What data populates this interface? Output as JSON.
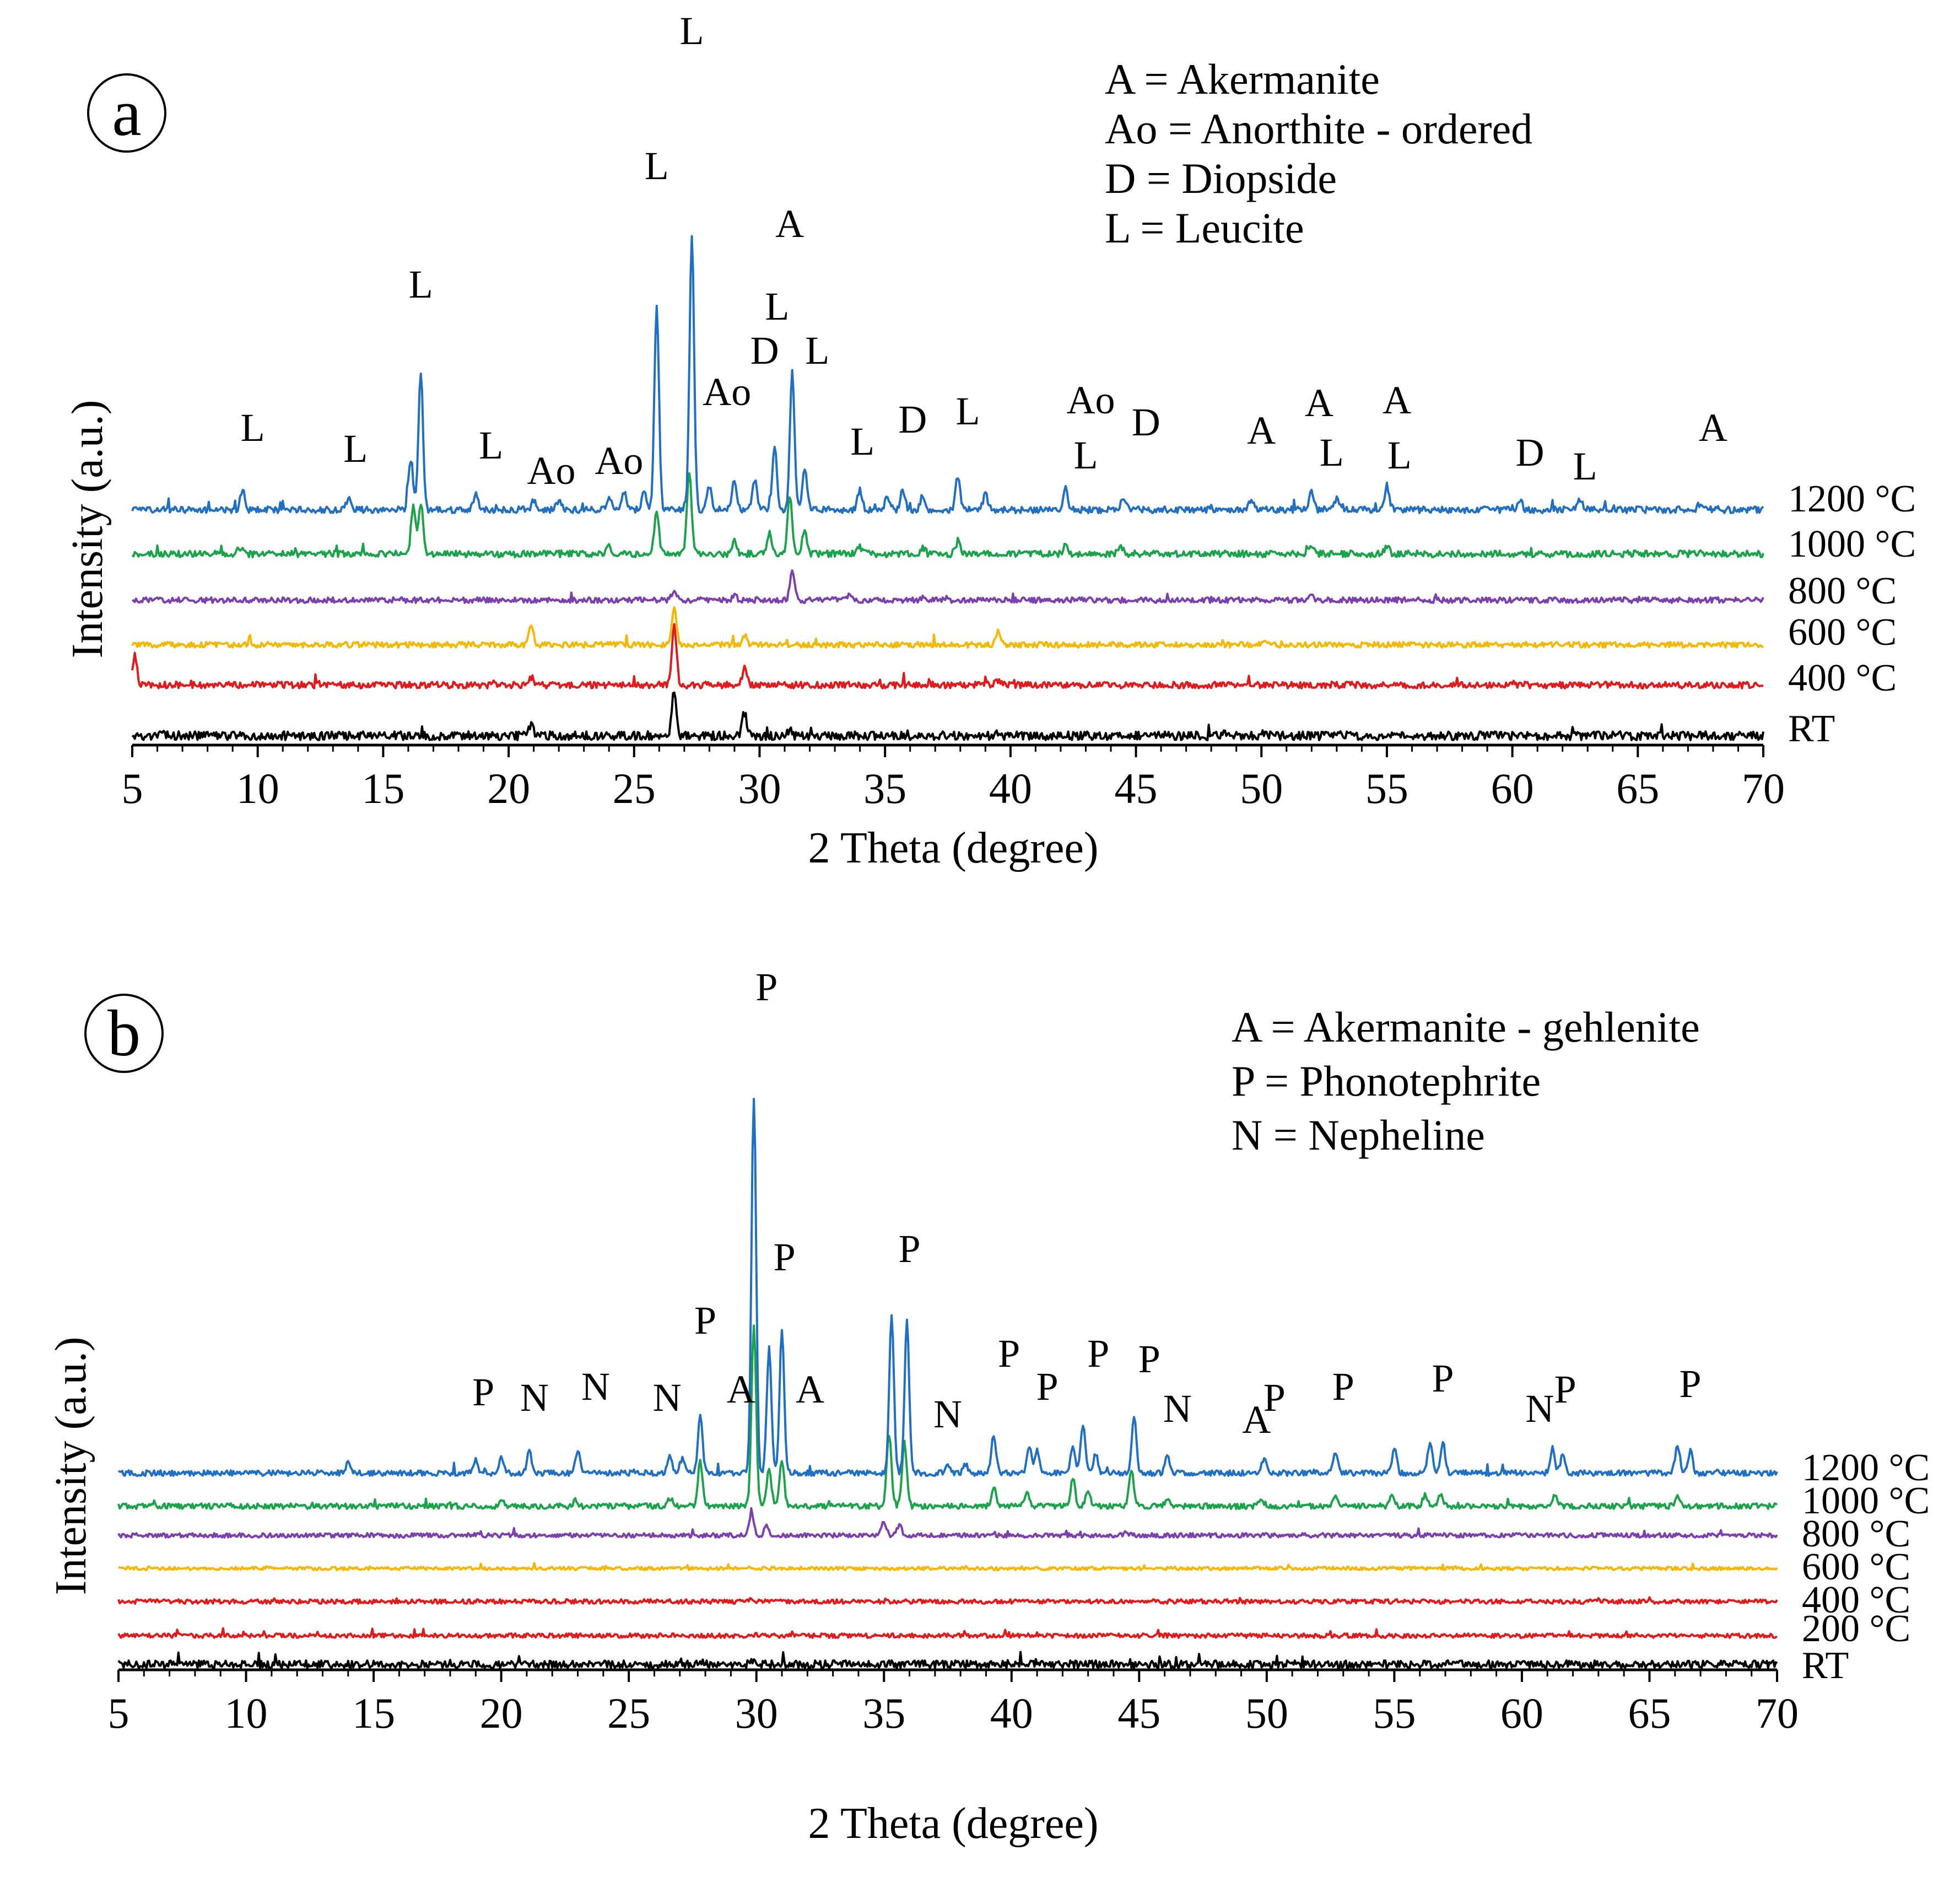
{
  "chart_data": [
    {
      "panel": "a",
      "type": "line",
      "xlabel": "2 Theta (degree)",
      "ylabel": "Intensity (a.u.)",
      "xlim": [
        5,
        70
      ],
      "xticks": [
        5,
        10,
        15,
        20,
        25,
        30,
        35,
        40,
        45,
        50,
        55,
        60,
        65,
        70
      ],
      "legend": [
        "A = Akermanite",
        "Ao = Anorthite - ordered",
        "D = Diopside",
        "L = Leucite"
      ],
      "series": [
        {
          "name": "RT",
          "color": "#000000",
          "peaks": [
            [
              20.9,
              0.6
            ],
            [
              26.6,
              3.0
            ],
            [
              29.4,
              1.5
            ],
            [
              31.2,
              0.35
            ],
            [
              39.5,
              0.25
            ],
            [
              48.5,
              0.2
            ],
            [
              50.1,
              0.25
            ]
          ]
        },
        {
          "name": "400 °C",
          "color": "#e31a1c",
          "peaks": [
            [
              5.1,
              1.5
            ],
            [
              20.9,
              0.4
            ],
            [
              26.6,
              3.0
            ],
            [
              29.4,
              0.9
            ],
            [
              39.5,
              0.25
            ],
            [
              60,
              0.15
            ]
          ]
        },
        {
          "name": "600 °C",
          "color": "#f5b800",
          "peaks": [
            [
              20.9,
              1.2
            ],
            [
              26.6,
              2.2
            ],
            [
              29.4,
              0.6
            ],
            [
              39.5,
              0.85
            ],
            [
              50.2,
              0.15
            ]
          ]
        },
        {
          "name": "800 °C",
          "color": "#7b3fb0",
          "peaks": [
            [
              26.6,
              0.7
            ],
            [
              29.0,
              0.3
            ],
            [
              31.3,
              1.9
            ],
            [
              33.6,
              0.3
            ],
            [
              36.5,
              0.2
            ],
            [
              52.0,
              0.3
            ]
          ]
        },
        {
          "name": "1000 °C",
          "color": "#1aa34a",
          "peaks": [
            [
              9.3,
              0.4
            ],
            [
              16.2,
              2.8
            ],
            [
              16.5,
              3.0
            ],
            [
              24.0,
              0.5
            ],
            [
              25.9,
              2.6
            ],
            [
              27.2,
              5.0
            ],
            [
              29.0,
              0.8
            ],
            [
              30.4,
              1.2
            ],
            [
              31.2,
              3.5
            ],
            [
              31.8,
              1.5
            ],
            [
              34.0,
              0.4
            ],
            [
              36.5,
              0.4
            ],
            [
              37.9,
              0.7
            ],
            [
              42.2,
              0.5
            ],
            [
              44.4,
              0.4
            ],
            [
              52.0,
              0.6
            ],
            [
              55.0,
              0.5
            ],
            [
              67.5,
              0.2
            ]
          ]
        },
        {
          "name": "1200 °C",
          "color": "#1f6fc4",
          "peaks": [
            [
              9.4,
              0.6
            ],
            [
              13.6,
              0.3
            ],
            [
              16.1,
              1.5
            ],
            [
              16.5,
              4.0
            ],
            [
              18.7,
              0.5
            ],
            [
              21.0,
              0.3
            ],
            [
              22.0,
              0.3
            ],
            [
              24.0,
              0.4
            ],
            [
              24.6,
              0.5
            ],
            [
              25.4,
              0.6
            ],
            [
              25.9,
              6.0
            ],
            [
              27.3,
              8.0
            ],
            [
              28.0,
              0.7
            ],
            [
              29.0,
              0.9
            ],
            [
              29.8,
              0.9
            ],
            [
              30.6,
              1.8
            ],
            [
              31.3,
              4.0
            ],
            [
              31.8,
              1.2
            ],
            [
              34.0,
              0.6
            ],
            [
              35.1,
              0.4
            ],
            [
              35.7,
              0.6
            ],
            [
              36.5,
              0.4
            ],
            [
              37.9,
              1.0
            ],
            [
              39.0,
              0.5
            ],
            [
              42.2,
              0.6
            ],
            [
              44.5,
              0.4
            ],
            [
              49.6,
              0.3
            ],
            [
              52.0,
              0.5
            ],
            [
              53.0,
              0.3
            ],
            [
              55.0,
              0.7
            ],
            [
              60.3,
              0.3
            ],
            [
              62.7,
              0.3
            ],
            [
              67.5,
              0.2
            ]
          ]
        }
      ],
      "annotations": [
        {
          "text": "L",
          "x": 27.3
        },
        {
          "text": "L",
          "x": 25.9
        },
        {
          "text": "L",
          "x": 16.5
        },
        {
          "text": "A",
          "x": 31.2
        },
        {
          "text": "L",
          "x": 30.7
        },
        {
          "text": "D",
          "x": 30.2
        },
        {
          "text": "L",
          "x": 32.3
        },
        {
          "text": "Ao",
          "x": 28.7
        },
        {
          "text": "Ao",
          "x": 24.4
        },
        {
          "text": "Ao",
          "x": 21.7
        },
        {
          "text": "L",
          "x": 9.8
        },
        {
          "text": "L",
          "x": 13.9
        },
        {
          "text": "L",
          "x": 19.3
        },
        {
          "text": "L",
          "x": 34.1
        },
        {
          "text": "D",
          "x": 36.1
        },
        {
          "text": "L",
          "x": 38.3
        },
        {
          "text": "Ao",
          "x": 43.2
        },
        {
          "text": "L",
          "x": 43.0
        },
        {
          "text": "D",
          "x": 45.4
        },
        {
          "text": "A",
          "x": 50.0
        },
        {
          "text": "A",
          "x": 52.3
        },
        {
          "text": "L",
          "x": 52.8
        },
        {
          "text": "A",
          "x": 55.4
        },
        {
          "text": "L",
          "x": 55.5
        },
        {
          "text": "D",
          "x": 60.7
        },
        {
          "text": "L",
          "x": 62.9
        },
        {
          "text": "A",
          "x": 68.0
        }
      ]
    },
    {
      "panel": "b",
      "type": "line",
      "xlabel": "2 Theta (degree)",
      "ylabel": "Intensity (a.u.)",
      "xlim": [
        5,
        70
      ],
      "xticks": [
        5,
        10,
        15,
        20,
        25,
        30,
        35,
        40,
        45,
        50,
        55,
        60,
        65,
        70
      ],
      "legend": [
        "A = Akermanite - gehlenite",
        "P = Phonotephrite",
        "N = Nepheline"
      ],
      "series": [
        {
          "name": "RT",
          "color": "#000000",
          "peaks": [
            [
              29.8,
              0.2
            ]
          ]
        },
        {
          "name": "200 °C",
          "color": "#e31a1c",
          "peaks": [
            [
              30.0,
              0.15
            ]
          ]
        },
        {
          "name": "400 °C",
          "color": "#e31a1c",
          "peaks": [
            [
              29.8,
              0.15
            ]
          ]
        },
        {
          "name": "600 °C",
          "color": "#f5b800",
          "peaks": [
            [
              29.8,
              0.1
            ]
          ]
        },
        {
          "name": "800 °C",
          "color": "#7b3fb0",
          "peaks": [
            [
              29.8,
              1.2
            ],
            [
              30.4,
              0.5
            ],
            [
              35.0,
              0.8
            ],
            [
              35.6,
              0.6
            ],
            [
              44.5,
              0.2
            ]
          ]
        },
        {
          "name": "1000 °C",
          "color": "#1aa34a",
          "peaks": [
            [
              20.0,
              0.4
            ],
            [
              22.9,
              0.3
            ],
            [
              26.6,
              0.4
            ],
            [
              27.8,
              2.5
            ],
            [
              29.9,
              10.0
            ],
            [
              30.5,
              2.0
            ],
            [
              31.0,
              2.5
            ],
            [
              35.2,
              4.0
            ],
            [
              35.8,
              3.5
            ],
            [
              39.3,
              1.0
            ],
            [
              40.6,
              0.8
            ],
            [
              42.4,
              1.5
            ],
            [
              43.0,
              0.8
            ],
            [
              44.7,
              2.0
            ],
            [
              46.1,
              0.4
            ],
            [
              49.8,
              0.4
            ],
            [
              52.7,
              0.6
            ],
            [
              54.9,
              0.5
            ],
            [
              56.2,
              0.6
            ],
            [
              56.8,
              0.6
            ],
            [
              61.3,
              0.6
            ],
            [
              66.1,
              0.6
            ]
          ]
        },
        {
          "name": "1200 °C",
          "color": "#1f6fc4",
          "peaks": [
            [
              14.0,
              0.3
            ],
            [
              19.0,
              0.4
            ],
            [
              20.0,
              0.5
            ],
            [
              21.1,
              0.7
            ],
            [
              23.0,
              0.7
            ],
            [
              26.6,
              0.5
            ],
            [
              27.1,
              0.5
            ],
            [
              27.8,
              1.8
            ],
            [
              29.9,
              12.0
            ],
            [
              30.5,
              4.0
            ],
            [
              31.0,
              4.5
            ],
            [
              35.3,
              5.0
            ],
            [
              35.9,
              4.8
            ],
            [
              37.5,
              0.3
            ],
            [
              38.2,
              0.3
            ],
            [
              39.3,
              1.2
            ],
            [
              40.7,
              0.8
            ],
            [
              41.0,
              0.7
            ],
            [
              42.4,
              0.8
            ],
            [
              42.8,
              1.5
            ],
            [
              43.3,
              0.6
            ],
            [
              44.8,
              1.8
            ],
            [
              46.1,
              0.6
            ],
            [
              49.9,
              0.5
            ],
            [
              52.7,
              0.7
            ],
            [
              55.0,
              0.8
            ],
            [
              56.4,
              1.0
            ],
            [
              56.9,
              1.0
            ],
            [
              61.2,
              0.8
            ],
            [
              61.6,
              0.6
            ],
            [
              66.1,
              0.9
            ],
            [
              66.6,
              0.7
            ]
          ]
        }
      ],
      "annotations": [
        {
          "text": "P",
          "x": 30.4
        },
        {
          "text": "P",
          "x": 31.1
        },
        {
          "text": "P",
          "x": 28.0
        },
        {
          "text": "A",
          "x": 29.4
        },
        {
          "text": "A",
          "x": 32.1
        },
        {
          "text": "P",
          "x": 36.0
        },
        {
          "text": "P",
          "x": 19.3
        },
        {
          "text": "N",
          "x": 21.3
        },
        {
          "text": "N",
          "x": 23.7
        },
        {
          "text": "N",
          "x": 26.5
        },
        {
          "text": "N",
          "x": 37.5
        },
        {
          "text": "P",
          "x": 39.9
        },
        {
          "text": "P",
          "x": 41.4
        },
        {
          "text": "P",
          "x": 43.4
        },
        {
          "text": "P",
          "x": 45.4
        },
        {
          "text": "N",
          "x": 46.5
        },
        {
          "text": "A",
          "x": 49.6
        },
        {
          "text": "P",
          "x": 50.3
        },
        {
          "text": "P",
          "x": 53.0
        },
        {
          "text": "P",
          "x": 56.9
        },
        {
          "text": "N",
          "x": 60.7
        },
        {
          "text": "P",
          "x": 61.7
        },
        {
          "text": "P",
          "x": 66.6
        }
      ]
    }
  ]
}
